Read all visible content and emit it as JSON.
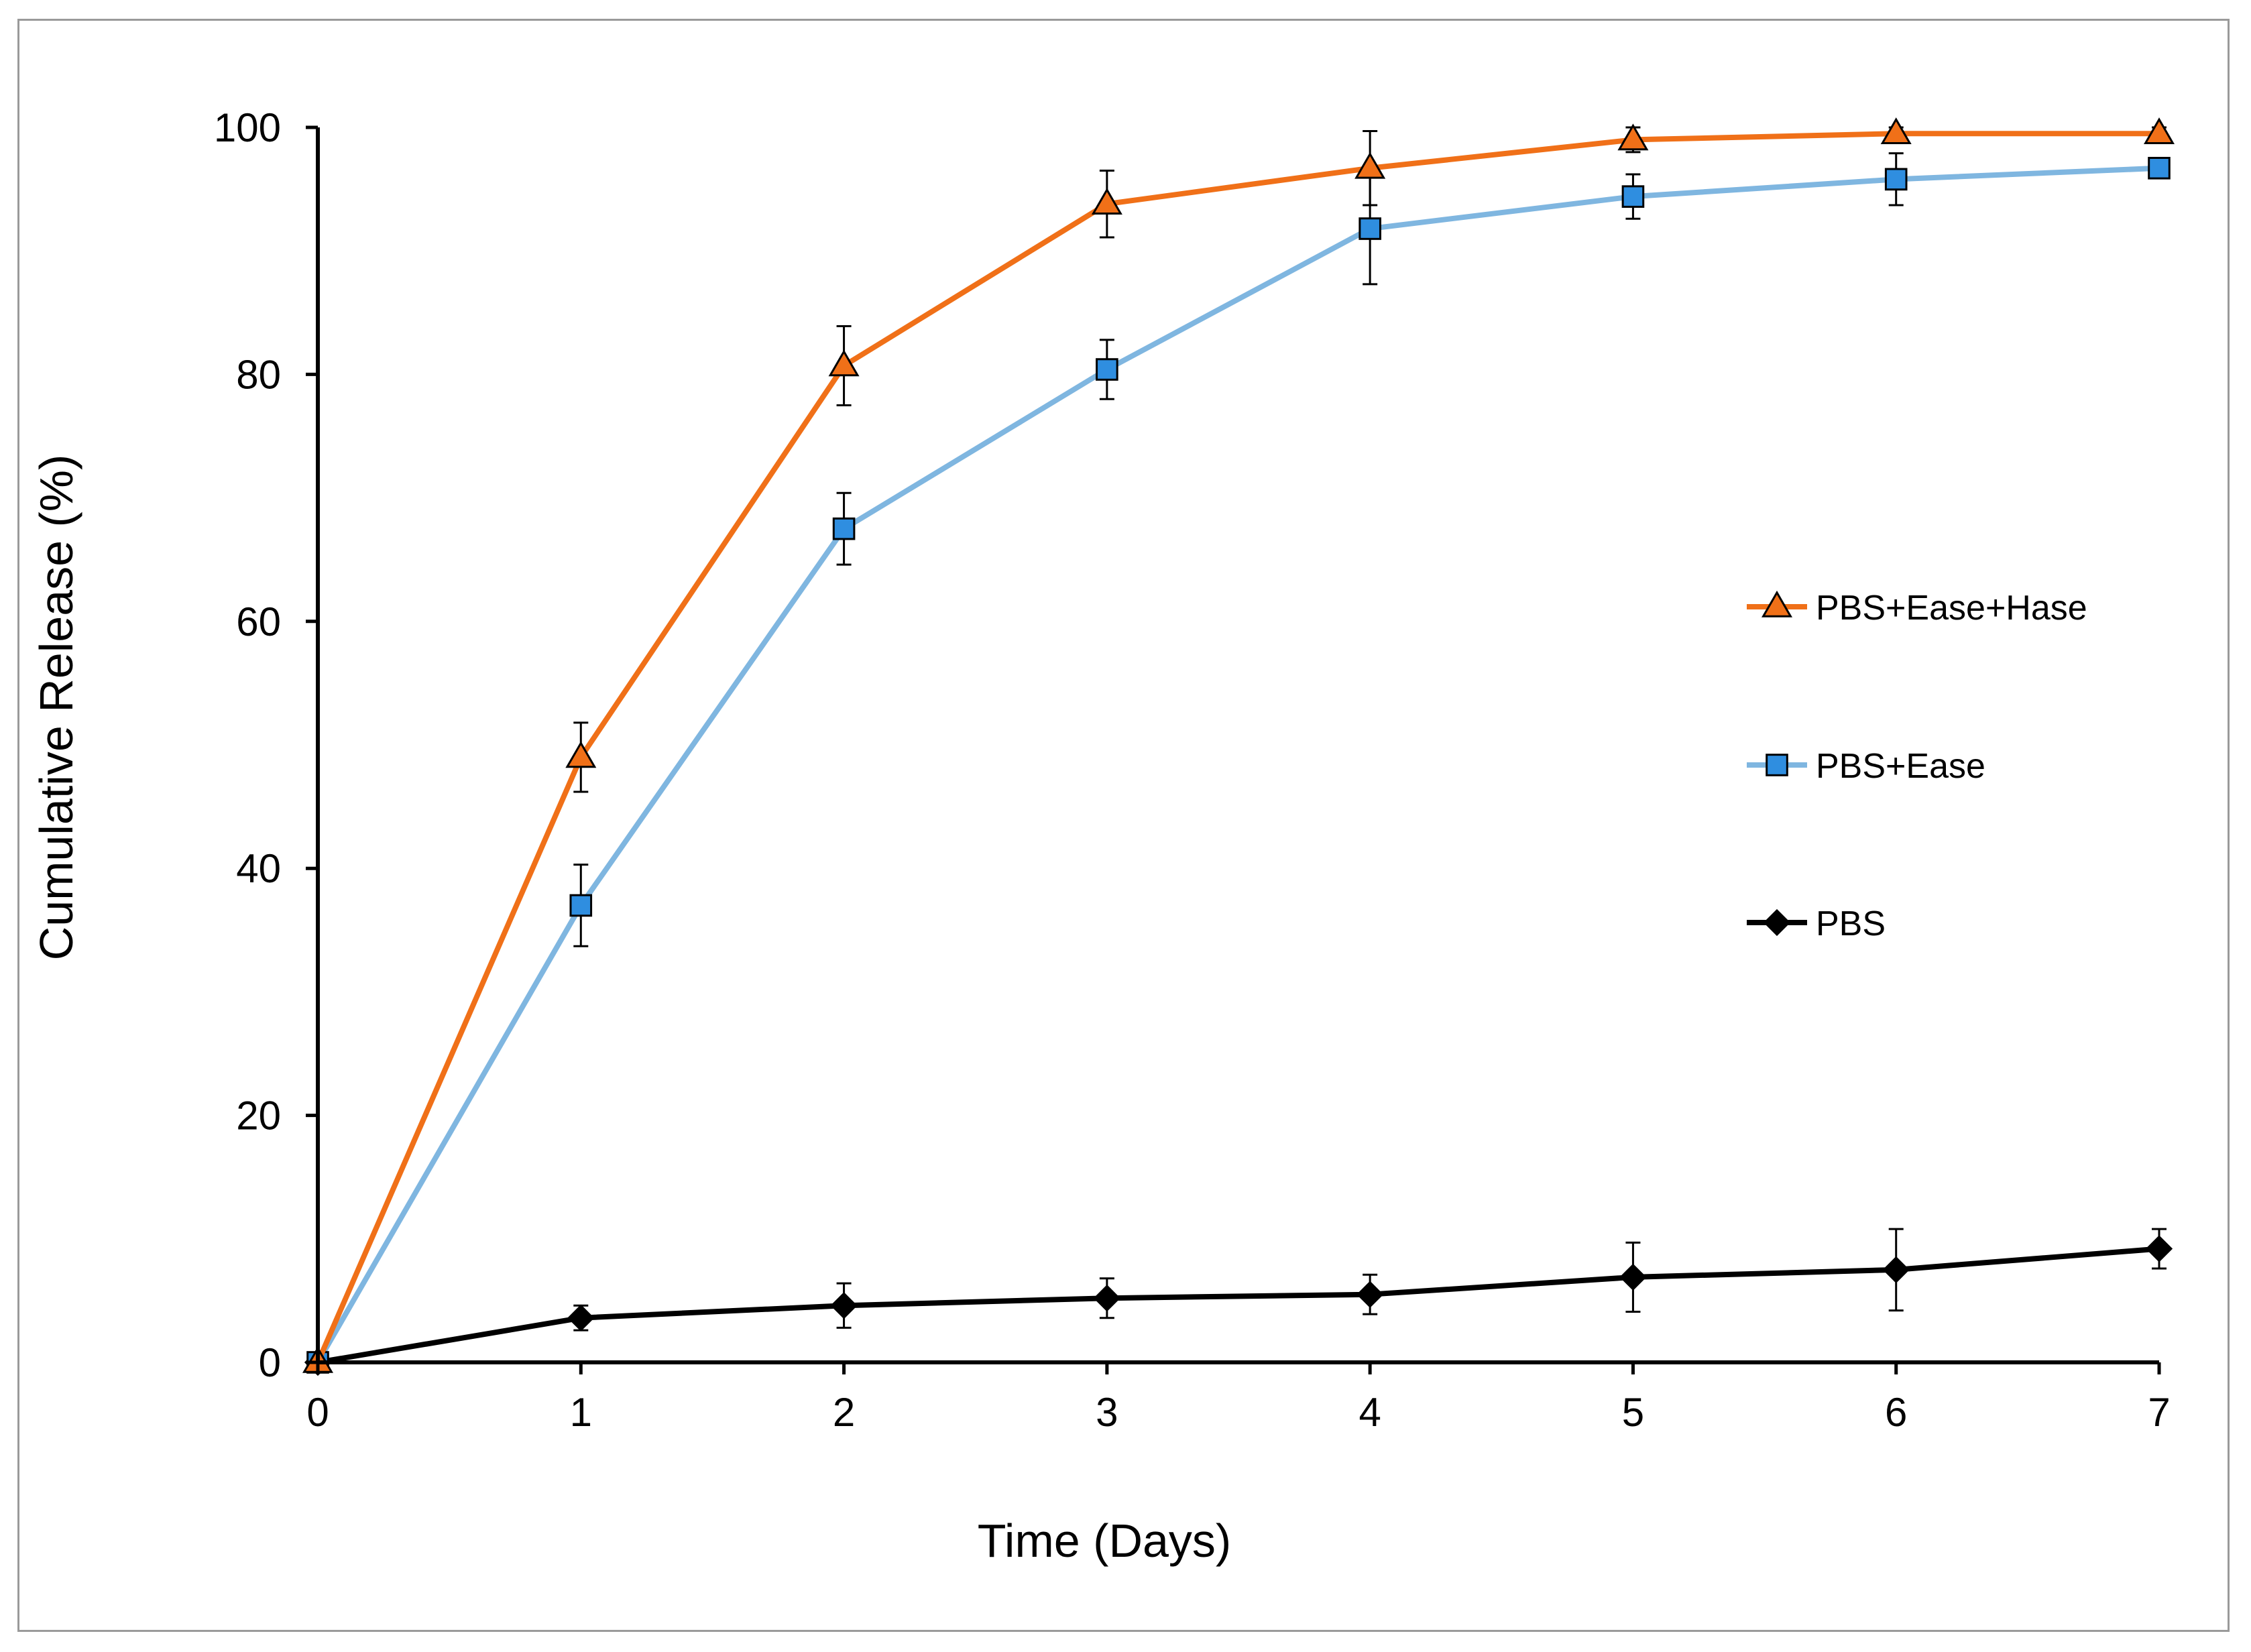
{
  "chart_data": {
    "type": "line",
    "title": "",
    "xlabel": "Time (Days)",
    "ylabel": "Cumulative Release (%)",
    "xlim": [
      0,
      7
    ],
    "ylim": [
      0,
      100
    ],
    "xticks": [
      "0",
      "1",
      "2",
      "3",
      "4",
      "5",
      "6",
      "7"
    ],
    "yticks": [
      "0",
      "20",
      "40",
      "60",
      "80",
      "100"
    ],
    "grid": false,
    "legend_position": "right",
    "x": [
      0,
      1,
      2,
      3,
      4,
      5,
      6,
      7
    ],
    "series": [
      {
        "name": "PBS+Ease+Hase",
        "color": "#f07018",
        "marker": "triangle",
        "marker_fill": "#f07018",
        "values": [
          0,
          49.0,
          80.7,
          93.8,
          96.7,
          99.0,
          99.5,
          99.5
        ],
        "errors": [
          0,
          2.8,
          3.2,
          2.7,
          3.0,
          1.0,
          0.5,
          0.5
        ]
      },
      {
        "name": "PBS+Ease",
        "color": "#7fb6e0",
        "marker": "square",
        "marker_fill": "#2f8ee0",
        "values": [
          0,
          37.0,
          67.5,
          80.4,
          91.8,
          94.4,
          95.8,
          96.7
        ],
        "errors": [
          0,
          3.3,
          2.9,
          2.4,
          4.5,
          1.8,
          2.1,
          0.5
        ]
      },
      {
        "name": "PBS",
        "color": "#000000",
        "marker": "diamond",
        "marker_fill": "#000000",
        "values": [
          0,
          3.6,
          4.6,
          5.2,
          5.5,
          6.9,
          7.5,
          9.2
        ],
        "errors": [
          0,
          1.0,
          1.8,
          1.6,
          1.6,
          2.8,
          3.3,
          1.6
        ]
      }
    ]
  }
}
